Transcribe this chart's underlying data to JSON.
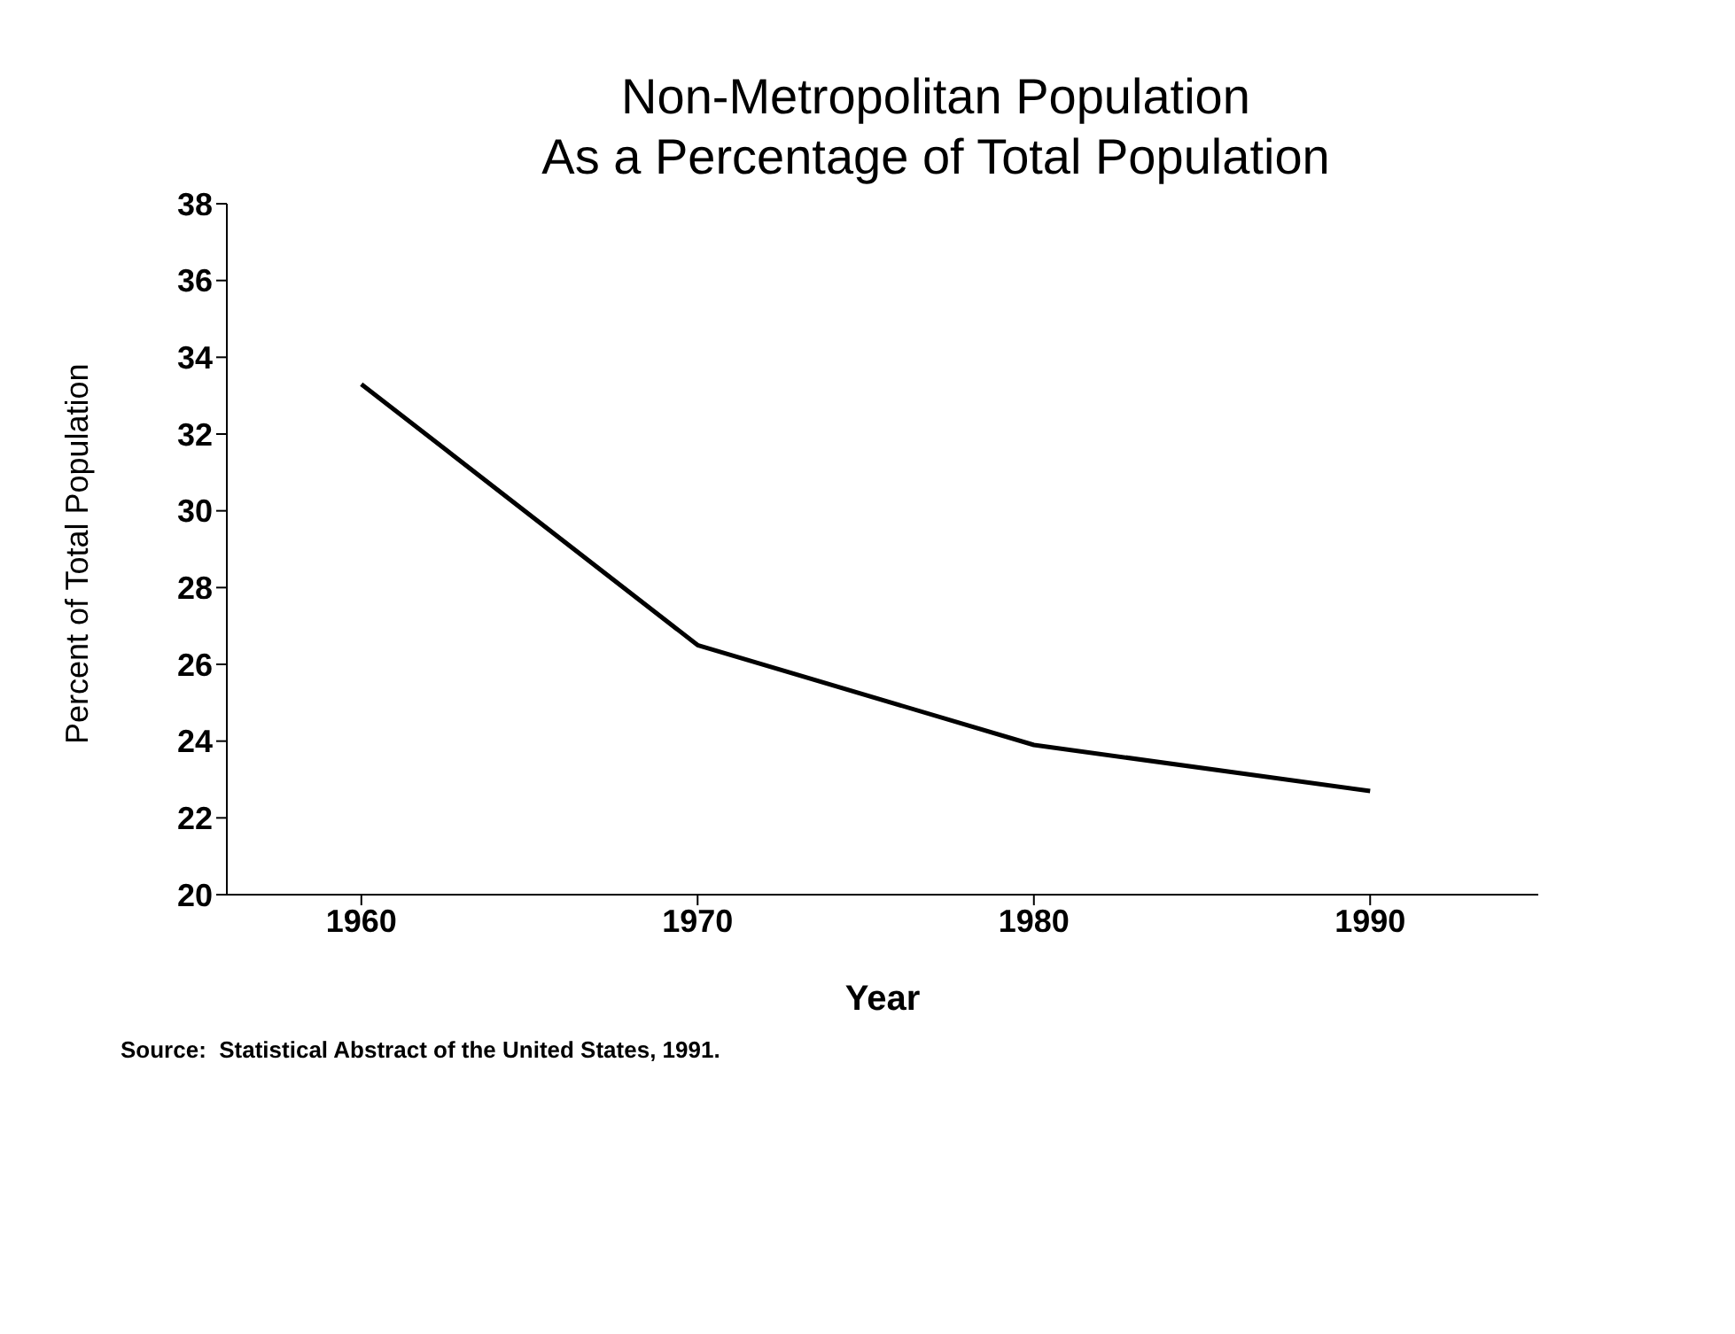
{
  "chart_data": {
    "type": "line",
    "title": "Non-Metropolitan Population\nAs a Percentage of Total Population",
    "xlabel": "Year",
    "ylabel": "Percent of Total Population",
    "x": [
      1960,
      1970,
      1980,
      1990
    ],
    "series": [
      {
        "color": "#000000",
        "values": [
          33.3,
          26.5,
          23.9,
          22.7
        ]
      }
    ],
    "xlim": [
      1956,
      1995
    ],
    "xticks": [
      1960,
      1970,
      1980,
      1990
    ],
    "ylim": [
      20,
      38
    ],
    "yticks": [
      20,
      22,
      24,
      26,
      28,
      30,
      32,
      34,
      36,
      38
    ],
    "grid": false,
    "marker": "none",
    "line_style": "solid",
    "annotations": [
      "Source:  Statistical Abstract of the United States, 1991."
    ]
  }
}
